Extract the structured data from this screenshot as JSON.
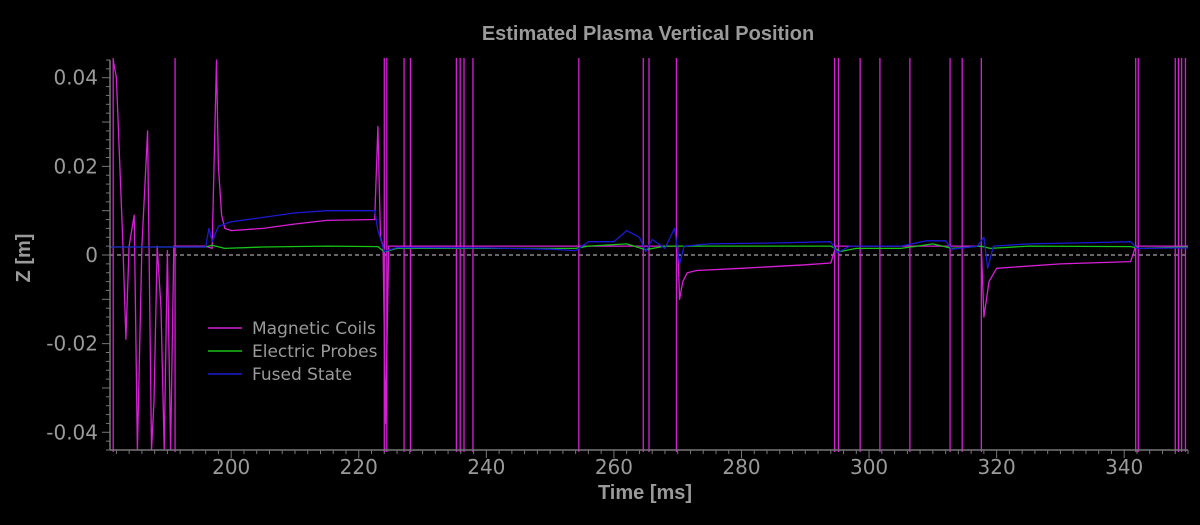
{
  "chart_data": {
    "type": "line",
    "title": "Estimated Plasma Vertical Position",
    "xlabel": "Time [ms]",
    "ylabel": "Z [m]",
    "xlim": [
      181,
      350
    ],
    "ylim": [
      -0.044,
      0.044
    ],
    "x_ticks": [
      200,
      220,
      240,
      260,
      280,
      300,
      320,
      340
    ],
    "y_ticks": [
      0.04,
      0.02,
      0,
      -0.02,
      -0.04
    ],
    "y_tick_labels": [
      "0.04",
      "0.02",
      "0",
      "-0.02",
      "-0.04"
    ],
    "grid": false,
    "zero_reference_line": true,
    "legend_position": "lower-left",
    "series": [
      {
        "name": "Magnetic Coils",
        "color": "#d81fd8",
        "points": [
          [
            181.5,
            0.044
          ],
          [
            182.0,
            0.04
          ],
          [
            183.0,
            0.003
          ],
          [
            183.5,
            -0.019
          ],
          [
            184.0,
            0.002
          ],
          [
            184.8,
            0.009
          ],
          [
            185.3,
            -0.044
          ],
          [
            186.0,
            0.002
          ],
          [
            186.9,
            0.028
          ],
          [
            187.5,
            -0.044
          ],
          [
            187.9,
            -0.033
          ],
          [
            188.4,
            0.002
          ],
          [
            189.0,
            -0.012
          ],
          [
            189.5,
            -0.044
          ],
          [
            190.0,
            0.001
          ],
          [
            190.5,
            -0.044
          ],
          [
            191.0,
            0.002
          ],
          [
            196.0,
            0.002
          ],
          [
            197.0,
            0.0015
          ],
          [
            197.7,
            0.044
          ],
          [
            198.0,
            0.02
          ],
          [
            198.5,
            0.009
          ],
          [
            199.0,
            0.006
          ],
          [
            200.0,
            0.0055
          ],
          [
            205.0,
            0.006
          ],
          [
            210.0,
            0.007
          ],
          [
            215.0,
            0.0078
          ],
          [
            222.5,
            0.008
          ],
          [
            223.0,
            0.029
          ],
          [
            223.4,
            0.004
          ],
          [
            223.8,
            0.002
          ],
          [
            224.2,
            -0.038
          ],
          [
            224.7,
            0.002
          ],
          [
            254.5,
            0.002
          ],
          [
            270.0,
            0.002
          ],
          [
            270.3,
            -0.01
          ],
          [
            270.8,
            -0.006
          ],
          [
            271.5,
            -0.004
          ],
          [
            273.0,
            -0.0035
          ],
          [
            280.0,
            -0.003
          ],
          [
            290.0,
            -0.0022
          ],
          [
            294.0,
            -0.0018
          ],
          [
            294.8,
            0.002
          ],
          [
            317.6,
            0.002
          ],
          [
            318.0,
            -0.014
          ],
          [
            318.8,
            -0.006
          ],
          [
            320.0,
            -0.003
          ],
          [
            330.0,
            -0.002
          ],
          [
            341.0,
            -0.0015
          ],
          [
            341.8,
            0.002
          ],
          [
            350.0,
            0.002
          ]
        ],
        "vertical_spikes_x": [
          181.5,
          191.2,
          224.0,
          224.4,
          227.1,
          228.1,
          235.3,
          235.9,
          236.5,
          237.9,
          254.5,
          264.6,
          265.5,
          269.8,
          294.6,
          295.2,
          298.6,
          301.7,
          306.4,
          312.7,
          314.6,
          317.6,
          341.8,
          342.2,
          348.0,
          348.5,
          349.0,
          349.6
        ]
      },
      {
        "name": "Electric Probes",
        "color": "#17c417",
        "points": [
          [
            181.0,
            0.0018
          ],
          [
            196.0,
            0.0018
          ],
          [
            197.0,
            0.0022
          ],
          [
            199.0,
            0.0015
          ],
          [
            205.0,
            0.0018
          ],
          [
            215.0,
            0.002
          ],
          [
            223.0,
            0.0019
          ],
          [
            224.0,
            0.0007
          ],
          [
            226.0,
            0.0015
          ],
          [
            240.0,
            0.0015
          ],
          [
            254.0,
            0.0015
          ],
          [
            256.0,
            0.002
          ],
          [
            262.0,
            0.0025
          ],
          [
            265.0,
            0.0012
          ],
          [
            268.0,
            0.002
          ],
          [
            272.0,
            0.002
          ],
          [
            280.0,
            0.002
          ],
          [
            294.0,
            0.002
          ],
          [
            295.5,
            0.0008
          ],
          [
            298.0,
            0.0015
          ],
          [
            305.0,
            0.0015
          ],
          [
            310.0,
            0.0025
          ],
          [
            313.0,
            0.0015
          ],
          [
            317.5,
            0.002
          ],
          [
            319.0,
            0.0015
          ],
          [
            325.0,
            0.002
          ],
          [
            341.0,
            0.0019
          ],
          [
            342.5,
            0.0015
          ],
          [
            350.0,
            0.0018
          ]
        ]
      },
      {
        "name": "Fused State",
        "color": "#1a1ad4",
        "points": [
          [
            181.0,
            0.0018
          ],
          [
            196.0,
            0.0018
          ],
          [
            196.5,
            0.006
          ],
          [
            197.0,
            0.003
          ],
          [
            198.0,
            0.0065
          ],
          [
            200.0,
            0.0075
          ],
          [
            210.0,
            0.0095
          ],
          [
            215.0,
            0.01
          ],
          [
            222.5,
            0.01
          ],
          [
            223.0,
            0.0055
          ],
          [
            224.0,
            0.0008
          ],
          [
            226.0,
            0.0017
          ],
          [
            240.0,
            0.0016
          ],
          [
            250.0,
            0.0013
          ],
          [
            254.0,
            0.001
          ],
          [
            256.0,
            0.003
          ],
          [
            260.0,
            0.003
          ],
          [
            262.0,
            0.0055
          ],
          [
            264.0,
            0.004
          ],
          [
            265.0,
            0.0008
          ],
          [
            266.0,
            0.0035
          ],
          [
            268.0,
            0.0015
          ],
          [
            269.5,
            0.006
          ],
          [
            270.3,
            -0.002
          ],
          [
            271.0,
            0.002
          ],
          [
            275.0,
            0.0025
          ],
          [
            285.0,
            0.0027
          ],
          [
            294.0,
            0.003
          ],
          [
            295.0,
            0.0005
          ],
          [
            297.0,
            0.002
          ],
          [
            305.0,
            0.002
          ],
          [
            309.0,
            0.0032
          ],
          [
            312.0,
            0.0032
          ],
          [
            313.0,
            0.0013
          ],
          [
            317.0,
            0.002
          ],
          [
            318.0,
            0.004
          ],
          [
            318.6,
            -0.003
          ],
          [
            319.5,
            0.002
          ],
          [
            325.0,
            0.0025
          ],
          [
            335.0,
            0.0028
          ],
          [
            341.0,
            0.003
          ],
          [
            342.0,
            0.0015
          ],
          [
            350.0,
            0.0016
          ]
        ]
      }
    ],
    "colors": {
      "background": "#000000",
      "text": "#9a9a9a",
      "axis": "#777777",
      "zero_line": "#cccccc"
    }
  }
}
